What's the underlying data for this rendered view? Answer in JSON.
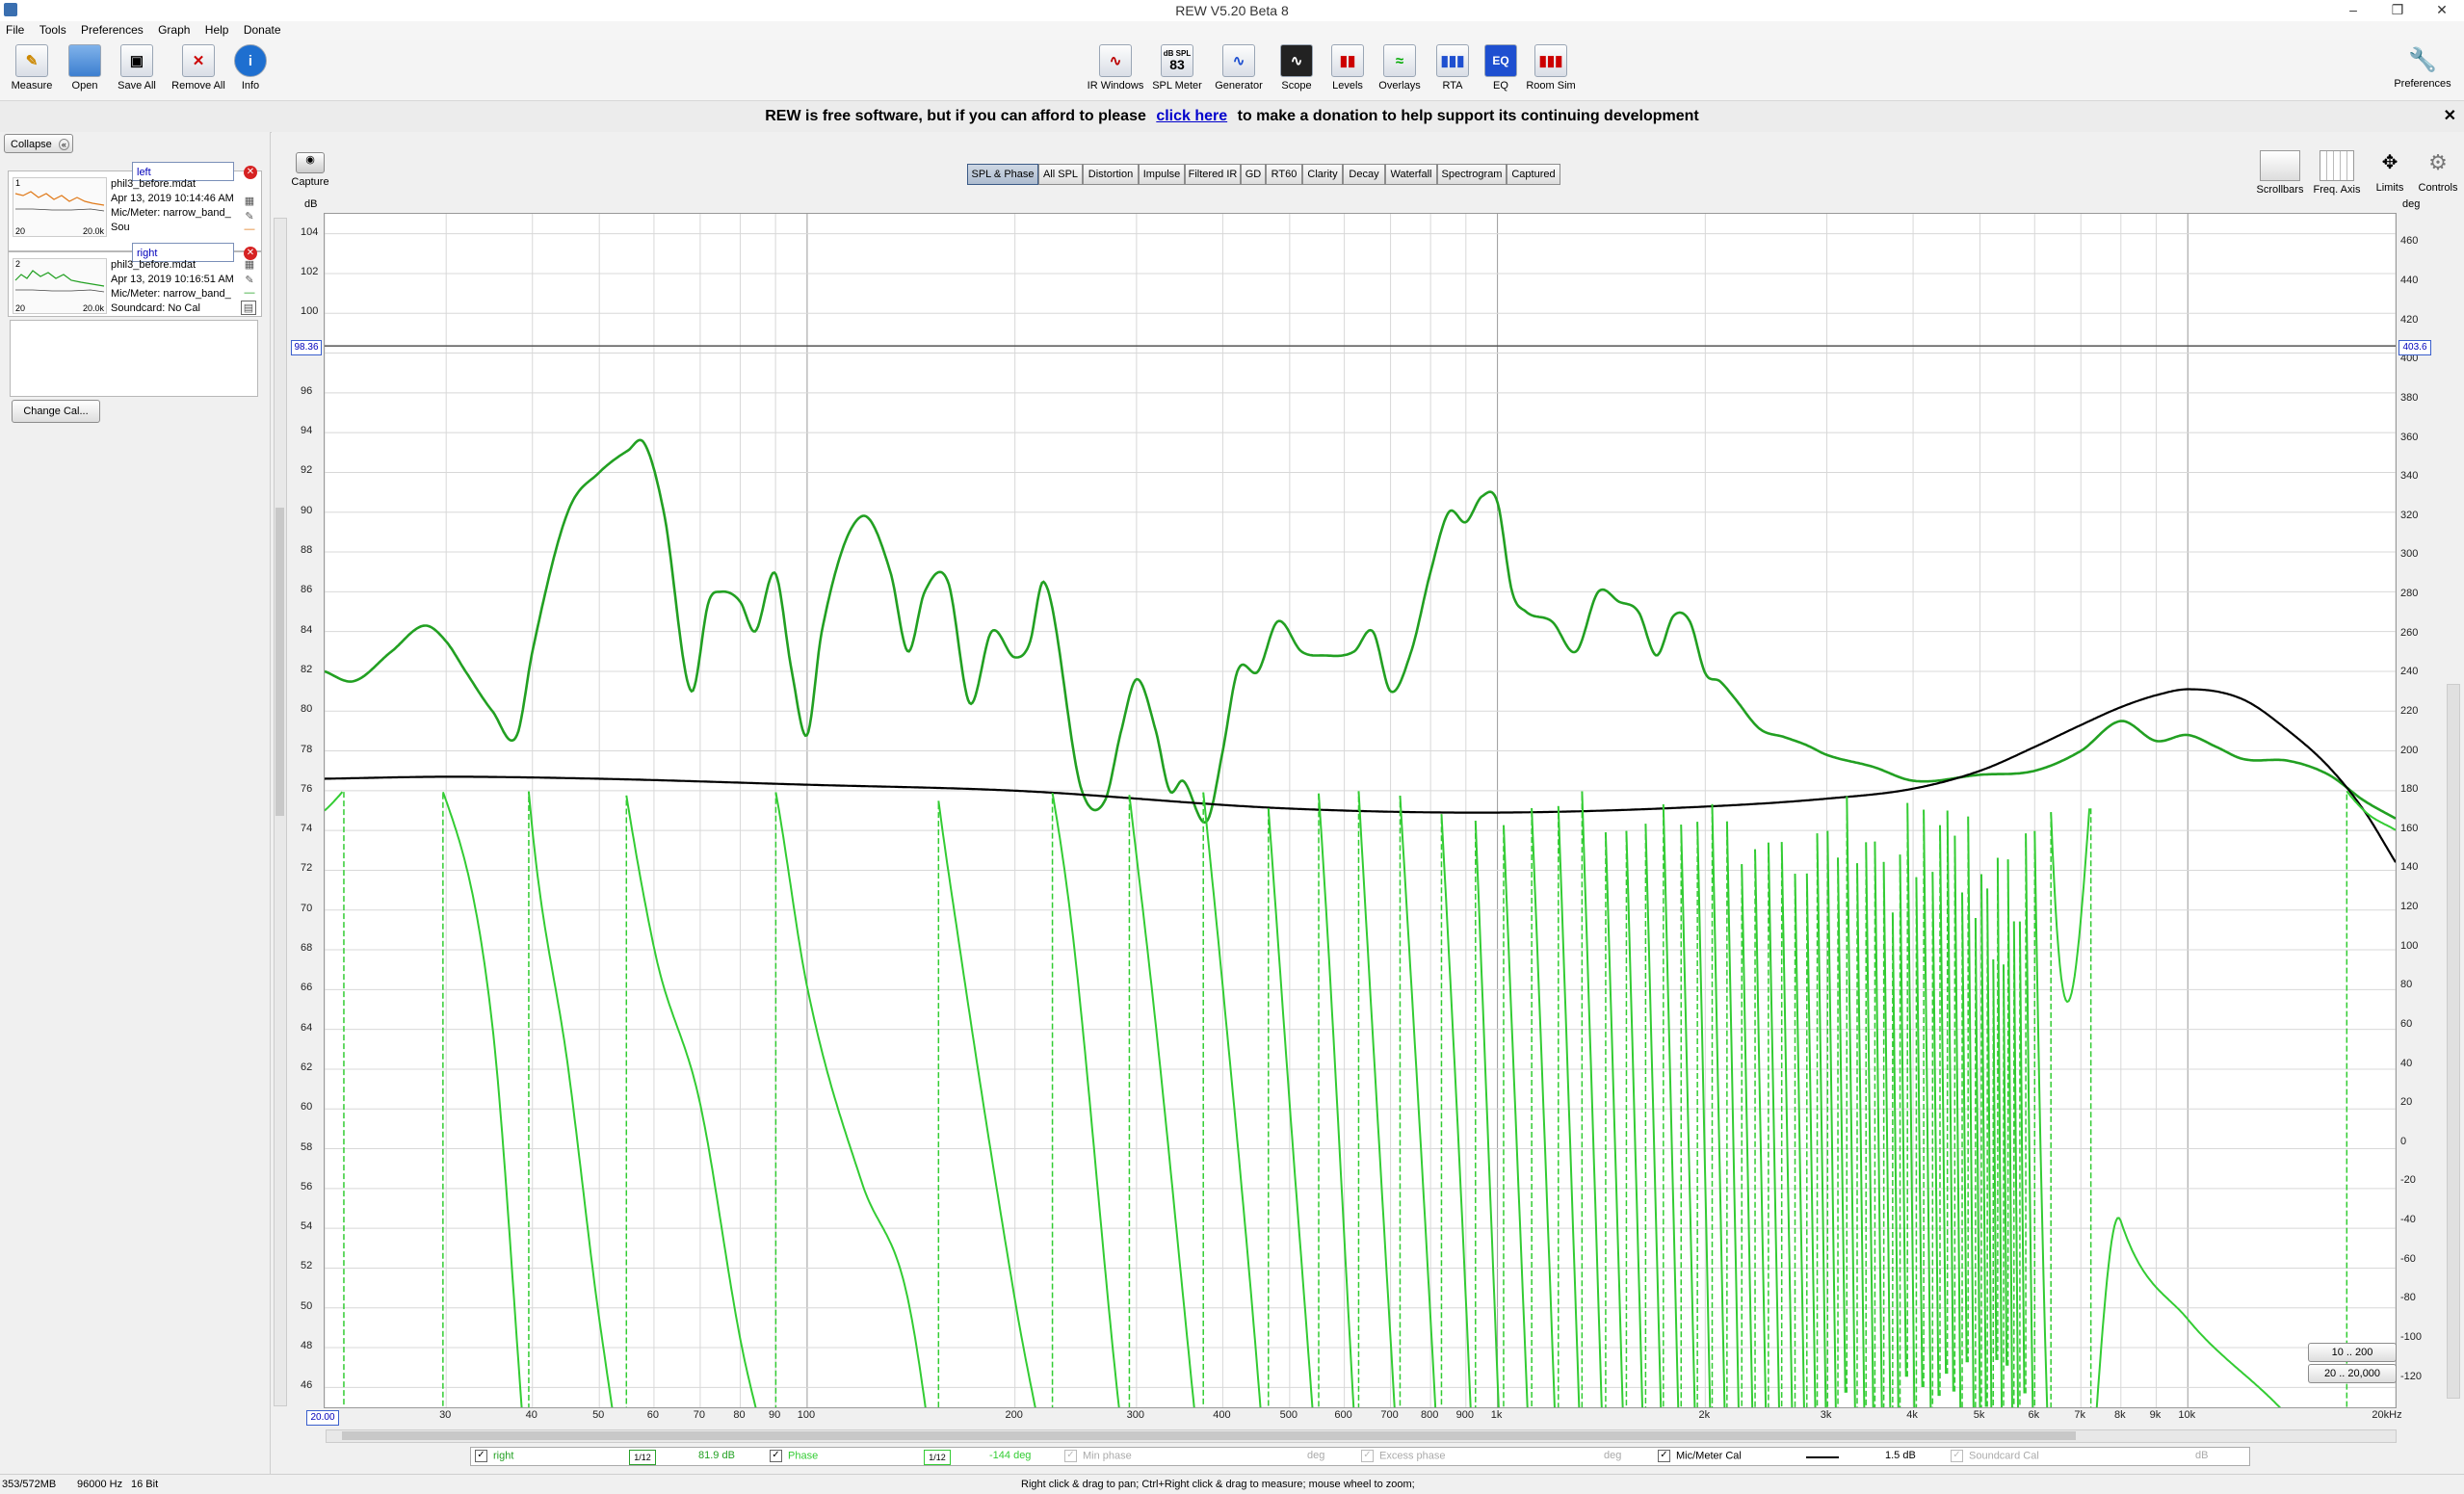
{
  "window": {
    "title": "REW V5.20 Beta 8"
  },
  "menu": [
    "File",
    "Tools",
    "Preferences",
    "Graph",
    "Help",
    "Donate"
  ],
  "toolbar": {
    "left": [
      {
        "label": "Measure",
        "icon": "measure-icon"
      },
      {
        "label": "Open",
        "icon": "folder-icon"
      },
      {
        "label": "Save All",
        "icon": "save-icon"
      },
      {
        "label": "Remove All",
        "icon": "remove-icon"
      },
      {
        "label": "Info",
        "icon": "info-icon"
      }
    ],
    "center": [
      {
        "label": "IR Windows",
        "icon": "ir-windows-icon"
      },
      {
        "label": "SPL Meter",
        "icon": "spl-meter-icon",
        "glyph_top": "dB SPL",
        "glyph_value": "83"
      },
      {
        "label": "Generator",
        "icon": "generator-icon"
      },
      {
        "label": "Scope",
        "icon": "scope-icon"
      },
      {
        "label": "Levels",
        "icon": "levels-icon"
      },
      {
        "label": "Overlays",
        "icon": "overlays-icon"
      },
      {
        "label": "RTA",
        "icon": "rta-icon"
      },
      {
        "label": "EQ",
        "icon": "eq-icon"
      },
      {
        "label": "Room Sim",
        "icon": "room-sim-icon"
      }
    ],
    "right": {
      "label": "Preferences",
      "icon": "wrench-icon"
    }
  },
  "donation": {
    "before": "REW is free software, but if you can afford to please",
    "link": "click here",
    "after": "to make a donation to help support its continuing development"
  },
  "measurements_panel": {
    "collapse_label": "Collapse",
    "items": [
      {
        "index": "1",
        "name": "left",
        "file": "phil3_before.mdat",
        "date": "Apr 13, 2019 10:14:46 AM",
        "mic": "Mic/Meter: narrow_band_",
        "soundcard": "Sou",
        "thumb_color": "#e07a1a",
        "thumb_x_min": "20",
        "thumb_x_max": "20.0k"
      },
      {
        "index": "2",
        "name": "right",
        "file": "phil3_before.mdat",
        "date": "Apr 13, 2019 10:16:51 AM",
        "mic": "Mic/Meter: narrow_band_",
        "soundcard": "Soundcard: No Cal",
        "thumb_color": "#22a022",
        "thumb_x_min": "20",
        "thumb_x_max": "20.0k"
      }
    ],
    "change_cal_label": "Change Cal..."
  },
  "graph": {
    "capture_label": "Capture",
    "tabs": [
      "SPL & Phase",
      "All SPL",
      "Distortion",
      "Impulse",
      "Filtered IR",
      "GD",
      "RT60",
      "Clarity",
      "Decay",
      "Waterfall",
      "Spectrogram",
      "Captured"
    ],
    "active_tab": "SPL & Phase",
    "right_tools": [
      "Scrollbars",
      "Freq. Axis",
      "Limits",
      "Controls"
    ],
    "left_axis_unit": "dB",
    "right_axis_unit": "deg",
    "cursor_left_value": "98.36",
    "cursor_right_value": "403.6",
    "cursor_freq_value": "20.00",
    "x_unit_suffix": "Hz",
    "range_buttons": [
      "10 .. 200",
      "20 .. 20,000"
    ]
  },
  "legend": [
    {
      "checked": true,
      "name": "right",
      "smoothing": "1/12",
      "value": "81.9 dB",
      "color": "#22a022",
      "enabled": true
    },
    {
      "checked": true,
      "name": "Phase",
      "smoothing": "1/12",
      "value": "-144 deg",
      "color": "#33cc33",
      "enabled": true
    },
    {
      "checked": true,
      "name": "Min phase",
      "value": "deg",
      "enabled": false
    },
    {
      "checked": true,
      "name": "Excess phase",
      "value": "deg",
      "enabled": false
    },
    {
      "checked": true,
      "name": "Mic/Meter Cal",
      "value": "1.5 dB",
      "color": "#000000",
      "enabled": true
    },
    {
      "checked": true,
      "name": "Soundcard Cal",
      "value": "dB",
      "enabled": false
    }
  ],
  "status": {
    "memory": "353/572MB",
    "sample_rate": "96000 Hz",
    "bits": "16 Bit",
    "hint": "Right click & drag to pan; Ctrl+Right click & drag to measure; mouse wheel to zoom;"
  },
  "chart_data": {
    "type": "line",
    "x_scale": "log",
    "xlim": [
      20,
      20000
    ],
    "x_ticks": [
      "30",
      "40",
      "50",
      "60",
      "70",
      "80",
      "90",
      "100",
      "200",
      "300",
      "400",
      "500",
      "600",
      "700",
      "800",
      "900",
      "1k",
      "2k",
      "3k",
      "4k",
      "5k",
      "6k",
      "7k",
      "8k",
      "9k",
      "10k",
      "20kHz"
    ],
    "ylabel": "dB",
    "ylim": [
      45,
      105
    ],
    "y_ticks": [
      46,
      48,
      50,
      52,
      54,
      56,
      58,
      60,
      62,
      64,
      66,
      68,
      70,
      72,
      74,
      76,
      78,
      80,
      82,
      84,
      86,
      88,
      90,
      92,
      94,
      96,
      98,
      100,
      102,
      104
    ],
    "y2label": "deg",
    "y2lim": [
      -135,
      475
    ],
    "y2_ticks": [
      -120,
      -100,
      -80,
      -60,
      -40,
      -20,
      0,
      20,
      40,
      60,
      80,
      100,
      120,
      140,
      160,
      180,
      200,
      220,
      240,
      260,
      280,
      300,
      320,
      340,
      360,
      380,
      400,
      420,
      440,
      460
    ],
    "grid": true,
    "series": [
      {
        "name": "right",
        "axis": "left",
        "color": "#22a022",
        "x": [
          20,
          22,
          25,
          28,
          30,
          32,
          35,
          38,
          40,
          45,
          50,
          55,
          58,
          62,
          68,
          72,
          75,
          80,
          84,
          90,
          95,
          100,
          105,
          120,
          132,
          140,
          148,
          160,
          172,
          185,
          200,
          210,
          220,
          250,
          270,
          285,
          300,
          320,
          335,
          350,
          380,
          400,
          420,
          450,
          480,
          520,
          560,
          620,
          660,
          700,
          750,
          800,
          850,
          900,
          950,
          1000,
          1050,
          1100,
          1200,
          1300,
          1400,
          1500,
          1600,
          1700,
          1800,
          1900,
          2000,
          2100,
          2200,
          2400,
          2600,
          2800,
          3000,
          3500,
          4000,
          5000,
          6000,
          7000,
          8000,
          9000,
          10000,
          11000,
          12000,
          14000,
          16000,
          18000,
          20000
        ],
        "y": [
          82,
          81.5,
          83,
          84.3,
          83.5,
          82,
          80,
          78.8,
          83,
          90,
          92,
          93.1,
          93.5,
          90,
          81,
          85.5,
          86,
          85.5,
          84,
          86.9,
          82,
          78.8,
          84,
          89.8,
          87,
          83,
          86,
          86.5,
          80.4,
          84,
          82.7,
          83.4,
          86.5,
          76,
          75.5,
          79,
          81.6,
          79,
          76,
          76.5,
          74.5,
          78,
          82,
          82,
          84.5,
          83,
          82.8,
          83,
          84,
          81,
          83,
          87,
          90,
          89.5,
          90.8,
          90.5,
          86,
          85,
          84.5,
          83,
          86,
          85.5,
          85,
          82.8,
          84.8,
          84.5,
          81.9,
          81.5,
          80.7,
          79.1,
          78.7,
          78.3,
          77.8,
          77.2,
          76.5,
          76.8,
          77,
          78,
          79.5,
          78.5,
          78.8,
          78.2,
          77.6,
          77.5,
          76.8,
          75.5,
          74.6
        ]
      },
      {
        "name": "Mic/Meter Cal",
        "axis": "left",
        "color": "#000000",
        "x": [
          20,
          30,
          50,
          100,
          200,
          500,
          1000,
          2000,
          3000,
          4000,
          5000,
          6000,
          7000,
          8000,
          9000,
          10000,
          12000,
          14000,
          16000,
          18000,
          20000
        ],
        "y": [
          76.6,
          76.7,
          76.6,
          76.3,
          76.0,
          75.1,
          74.9,
          75.2,
          75.6,
          76.1,
          77,
          78.2,
          79.3,
          80.2,
          80.8,
          81.1,
          80.6,
          79,
          77.2,
          75,
          72.4
        ]
      },
      {
        "name": "Phase",
        "axis": "right",
        "color": "#33cc33",
        "wrap": [
          -180,
          180
        ],
        "x": [
          20,
          25,
          30,
          35,
          40,
          45,
          50,
          60,
          70,
          80,
          90,
          100,
          120,
          140,
          160,
          180,
          200,
          240,
          280,
          320,
          360,
          400,
          450,
          500,
          560,
          620,
          700,
          800,
          900,
          1000,
          1200,
          1400,
          1600,
          1800,
          2000,
          2400,
          2800,
          3200,
          3600,
          4000,
          4500,
          5000,
          6000,
          8000,
          10000,
          14000,
          18000,
          20000
        ],
        "y": [
          170,
          200,
          175,
          60,
          -200,
          -320,
          -450,
          -620,
          -700,
          -820,
          -900,
          -1000,
          -1100,
          -1160,
          -1300,
          -1420,
          -1520,
          -1680,
          -1920,
          -2100,
          -2280,
          -2440,
          -2640,
          -2860,
          -3100,
          -3380,
          -3700,
          -4050,
          -4400,
          -4800,
          -5500,
          -6200,
          -6900,
          -7600,
          -8300,
          -9700,
          -11000,
          -12400,
          -13800,
          -15200,
          -16800,
          -18500,
          -21800,
          -22000,
          -22050,
          -22100,
          -22150,
          -22160
        ]
      }
    ]
  }
}
